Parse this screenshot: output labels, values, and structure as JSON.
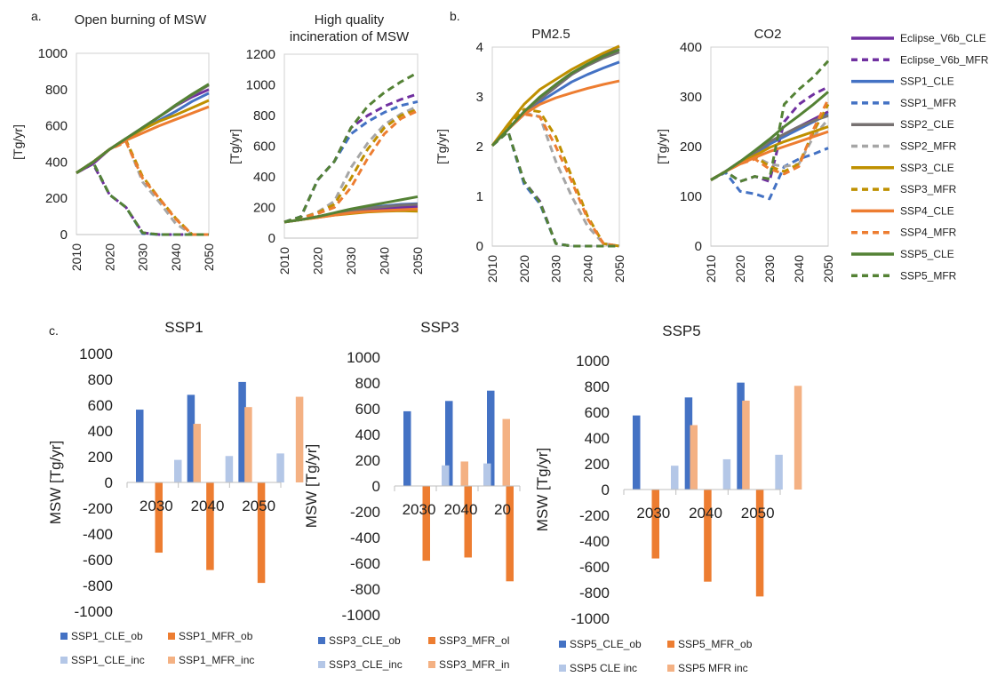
{
  "figure": {
    "panel_labels": [
      "a.",
      "b.",
      "c."
    ]
  },
  "colors": {
    "Eclipse_V6b": "#7030a0",
    "SSP1": "#4472c4",
    "SSP2": "#767171",
    "SSP2_MFR": "#a6a6a6",
    "SSP3": "#bf9000",
    "SSP4": "#ed7d31",
    "SSP5": "#548235",
    "cle_ob": "#4472c4",
    "mfr_ob": "#ed7d31",
    "cle_inc": "#b4c7e7",
    "mfr_inc": "#f4b183"
  },
  "legend": {
    "entries": [
      {
        "label": "Eclipse_V6b_CLE",
        "color": "#7030a0",
        "dash": false
      },
      {
        "label": "Eclipse_V6b_MFR",
        "color": "#7030a0",
        "dash": true
      },
      {
        "label": "SSP1_CLE",
        "color": "#4472c4",
        "dash": false
      },
      {
        "label": "SSP1_MFR",
        "color": "#4472c4",
        "dash": true
      },
      {
        "label": "SSP2_CLE",
        "color": "#767171",
        "dash": false
      },
      {
        "label": "SSP2_MFR",
        "color": "#a6a6a6",
        "dash": true
      },
      {
        "label": "SSP3_CLE",
        "color": "#bf9000",
        "dash": false
      },
      {
        "label": "SSP3_MFR",
        "color": "#bf9000",
        "dash": true
      },
      {
        "label": "SSP4_CLE",
        "color": "#ed7d31",
        "dash": false
      },
      {
        "label": "SSP4_MFR",
        "color": "#ed7d31",
        "dash": true
      },
      {
        "label": "SSP5_CLE",
        "color": "#548235",
        "dash": false
      },
      {
        "label": "SSP5_MFR",
        "color": "#548235",
        "dash": true
      }
    ]
  },
  "chart_data": [
    {
      "type": "line",
      "title": "Open burning of MSW",
      "ylabel": "[Tg/yr]",
      "x": [
        2010,
        2015,
        2020,
        2025,
        2030,
        2035,
        2040,
        2045,
        2050
      ],
      "xticks": [
        "2010",
        "2020",
        "2030",
        "2040",
        "2050"
      ],
      "ylim": [
        0,
        1000
      ],
      "yticks": [
        "0",
        "200",
        "400",
        "600",
        "800",
        "1000"
      ],
      "series": [
        {
          "name": "Eclipse_V6b_CLE",
          "values": [
            340,
            390,
            470,
            520,
            590,
            650,
            710,
            760,
            800
          ]
        },
        {
          "name": "Eclipse_V6b_MFR",
          "values": [
            340,
            390,
            220,
            150,
            10,
            0,
            0,
            0,
            0
          ]
        },
        {
          "name": "SSP1_CLE",
          "values": [
            340,
            400,
            470,
            530,
            580,
            630,
            680,
            735,
            780
          ]
        },
        {
          "name": "SSP1_MFR",
          "values": [
            340,
            400,
            220,
            150,
            5,
            0,
            0,
            0,
            0
          ]
        },
        {
          "name": "SSP2_CLE",
          "values": [
            340,
            400,
            470,
            530,
            590,
            650,
            710,
            770,
            825
          ]
        },
        {
          "name": "SSP2_MFR",
          "values": [
            340,
            400,
            470,
            520,
            290,
            180,
            60,
            0,
            0
          ]
        },
        {
          "name": "SSP3_CLE",
          "values": [
            340,
            400,
            470,
            530,
            580,
            625,
            660,
            700,
            740
          ]
        },
        {
          "name": "SSP3_MFR",
          "values": [
            340,
            400,
            470,
            520,
            320,
            200,
            90,
            0,
            0
          ]
        },
        {
          "name": "SSP4_CLE",
          "values": [
            340,
            400,
            470,
            520,
            560,
            600,
            635,
            670,
            705
          ]
        },
        {
          "name": "SSP4_MFR",
          "values": [
            340,
            400,
            470,
            510,
            310,
            200,
            85,
            0,
            0
          ]
        },
        {
          "name": "SSP5_CLE",
          "values": [
            340,
            400,
            470,
            530,
            590,
            650,
            715,
            775,
            830
          ]
        },
        {
          "name": "SSP5_MFR",
          "values": [
            340,
            400,
            220,
            150,
            10,
            0,
            0,
            0,
            0
          ]
        }
      ]
    },
    {
      "type": "line",
      "title": "High quality incineration of MSW",
      "title_lines": [
        "High quality",
        "incineration of MSW"
      ],
      "ylabel": "[Tg/yr]",
      "x": [
        2010,
        2015,
        2020,
        2025,
        2030,
        2035,
        2040,
        2045,
        2050
      ],
      "xticks": [
        "2010",
        "2020",
        "2030",
        "2040",
        "2050"
      ],
      "ylim": [
        0,
        1200
      ],
      "yticks": [
        "0",
        "200",
        "400",
        "600",
        "800",
        "1000",
        "1200"
      ],
      "series": [
        {
          "name": "Eclipse_V6b_CLE",
          "values": [
            105,
            120,
            140,
            160,
            180,
            190,
            195,
            200,
            205
          ]
        },
        {
          "name": "Eclipse_V6b_MFR",
          "values": [
            105,
            140,
            380,
            500,
            720,
            800,
            860,
            905,
            940
          ]
        },
        {
          "name": "SSP1_CLE",
          "values": [
            105,
            120,
            140,
            160,
            180,
            200,
            210,
            220,
            225
          ]
        },
        {
          "name": "SSP1_MFR",
          "values": [
            105,
            140,
            380,
            500,
            680,
            760,
            820,
            865,
            890
          ]
        },
        {
          "name": "SSP2_CLE",
          "values": [
            105,
            120,
            140,
            160,
            180,
            195,
            205,
            215,
            220
          ]
        },
        {
          "name": "SSP2_MFR",
          "values": [
            105,
            130,
            170,
            240,
            460,
            620,
            740,
            810,
            860
          ]
        },
        {
          "name": "SSP3_CLE",
          "values": [
            105,
            120,
            135,
            150,
            160,
            170,
            175,
            178,
            175
          ]
        },
        {
          "name": "SSP3_MFR",
          "values": [
            105,
            130,
            165,
            220,
            390,
            580,
            720,
            800,
            840
          ]
        },
        {
          "name": "SSP4_CLE",
          "values": [
            105,
            120,
            135,
            150,
            165,
            175,
            180,
            185,
            190
          ]
        },
        {
          "name": "SSP4_MFR",
          "values": [
            105,
            130,
            160,
            200,
            330,
            520,
            680,
            780,
            830
          ]
        },
        {
          "name": "SSP5_CLE",
          "values": [
            105,
            120,
            140,
            165,
            190,
            210,
            230,
            250,
            270
          ]
        },
        {
          "name": "SSP5_MFR",
          "values": [
            105,
            140,
            380,
            500,
            720,
            860,
            950,
            1020,
            1080
          ]
        }
      ]
    },
    {
      "type": "line",
      "title": "PM2.5",
      "ylabel": "[Tg/yr]",
      "x": [
        2010,
        2015,
        2020,
        2025,
        2030,
        2035,
        2040,
        2045,
        2050
      ],
      "xticks": [
        "2010",
        "2020",
        "2030",
        "2040",
        "2050"
      ],
      "ylim": [
        0,
        4
      ],
      "yticks": [
        "0",
        "1",
        "2",
        "3",
        "4"
      ],
      "series": [
        {
          "name": "Eclipse_V6b_CLE",
          "values": [
            2.02,
            2.35,
            2.7,
            2.95,
            3.2,
            3.45,
            3.65,
            3.85,
            4.02
          ]
        },
        {
          "name": "Eclipse_V6b_MFR",
          "values": [
            2.02,
            2.3,
            1.3,
            0.9,
            0.05,
            0,
            0,
            0,
            0
          ]
        },
        {
          "name": "SSP1_CLE",
          "values": [
            2.02,
            2.35,
            2.65,
            2.9,
            3.1,
            3.3,
            3.45,
            3.58,
            3.7
          ]
        },
        {
          "name": "SSP1_MFR",
          "values": [
            2.02,
            2.3,
            1.25,
            0.85,
            0.05,
            0,
            0,
            0,
            0
          ]
        },
        {
          "name": "SSP2_CLE",
          "values": [
            2.02,
            2.35,
            2.68,
            2.95,
            3.2,
            3.45,
            3.63,
            3.78,
            3.9
          ]
        },
        {
          "name": "SSP2_MFR",
          "values": [
            2.02,
            2.35,
            2.68,
            2.6,
            1.7,
            1.0,
            0.4,
            0.05,
            0
          ]
        },
        {
          "name": "SSP3_CLE",
          "values": [
            2.02,
            2.45,
            2.85,
            3.15,
            3.35,
            3.55,
            3.72,
            3.88,
            4.02
          ]
        },
        {
          "name": "SSP3_MFR",
          "values": [
            2.02,
            2.4,
            2.75,
            2.7,
            2.2,
            1.4,
            0.6,
            0.05,
            0
          ]
        },
        {
          "name": "SSP4_CLE",
          "values": [
            2.02,
            2.35,
            2.65,
            2.85,
            2.98,
            3.08,
            3.17,
            3.25,
            3.32
          ]
        },
        {
          "name": "SSP4_MFR",
          "values": [
            2.02,
            2.35,
            2.65,
            2.6,
            2.0,
            1.3,
            0.55,
            0.05,
            0
          ]
        },
        {
          "name": "SSP5_CLE",
          "values": [
            2.02,
            2.35,
            2.7,
            3.0,
            3.25,
            3.48,
            3.66,
            3.82,
            3.95
          ]
        },
        {
          "name": "SSP5_MFR",
          "values": [
            2.02,
            2.3,
            1.3,
            0.88,
            0.05,
            0,
            0,
            0,
            0
          ]
        }
      ]
    },
    {
      "type": "line",
      "title": "CO2",
      "ylabel": "[Tg/yr]",
      "x": [
        2010,
        2015,
        2020,
        2025,
        2030,
        2035,
        2040,
        2045,
        2050
      ],
      "xticks": [
        "2010",
        "2020",
        "2030",
        "2040",
        "2050"
      ],
      "ylim": [
        0,
        400
      ],
      "yticks": [
        "0",
        "100",
        "200",
        "300",
        "400"
      ],
      "series": [
        {
          "name": "Eclipse_V6b_CLE",
          "values": [
            133,
            150,
            168,
            185,
            205,
            225,
            240,
            255,
            270
          ]
        },
        {
          "name": "Eclipse_V6b_MFR",
          "values": [
            133,
            150,
            130,
            140,
            130,
            250,
            285,
            305,
            320
          ]
        },
        {
          "name": "SSP1_CLE",
          "values": [
            133,
            150,
            170,
            185,
            205,
            220,
            235,
            250,
            265
          ]
        },
        {
          "name": "SSP1_MFR",
          "values": [
            133,
            148,
            110,
            105,
            95,
            160,
            175,
            185,
            197
          ]
        },
        {
          "name": "SSP2_CLE",
          "values": [
            133,
            150,
            170,
            188,
            210,
            225,
            240,
            252,
            262
          ]
        },
        {
          "name": "SSP2_MFR",
          "values": [
            133,
            150,
            170,
            180,
            165,
            160,
            165,
            220,
            255
          ]
        },
        {
          "name": "SSP3_CLE",
          "values": [
            133,
            150,
            168,
            182,
            198,
            210,
            220,
            230,
            240
          ]
        },
        {
          "name": "SSP3_MFR",
          "values": [
            133,
            150,
            168,
            180,
            160,
            150,
            165,
            230,
            285
          ]
        },
        {
          "name": "SSP4_CLE",
          "values": [
            133,
            150,
            165,
            178,
            190,
            200,
            210,
            220,
            230
          ]
        },
        {
          "name": "SSP4_MFR",
          "values": [
            133,
            150,
            165,
            175,
            155,
            145,
            160,
            235,
            295
          ]
        },
        {
          "name": "SSP5_CLE",
          "values": [
            133,
            150,
            170,
            192,
            215,
            240,
            262,
            285,
            310
          ]
        },
        {
          "name": "SSP5_MFR",
          "values": [
            133,
            150,
            130,
            140,
            135,
            285,
            315,
            340,
            372
          ]
        }
      ]
    },
    {
      "type": "bar",
      "title": "SSP1",
      "ylabel": "MSW  [Tg/yr]",
      "categories": [
        "2030",
        "2040",
        "2050"
      ],
      "ylim": [
        -1000,
        1000
      ],
      "yticks": [
        "1000",
        "800",
        "600",
        "400",
        "200",
        "0",
        "-200",
        "-400",
        "-600",
        "-800",
        "-1000"
      ],
      "series": [
        {
          "name": "SSP1_CLE_ob",
          "values": [
            565,
            680,
            780
          ]
        },
        {
          "name": "SSP1_MFR_ob",
          "values": [
            -545,
            -680,
            -780
          ]
        },
        {
          "name": "SSP1_CLE_inc",
          "values": [
            175,
            205,
            225
          ]
        },
        {
          "name": "SSP1_MFR_inc",
          "values": [
            455,
            585,
            665
          ]
        }
      ]
    },
    {
      "type": "bar",
      "title": "SSP3",
      "ylabel": "MSW  [Tg/yr]",
      "categories": [
        "2030",
        "2040",
        "20"
      ],
      "ylim": [
        -1000,
        1000
      ],
      "yticks": [
        "1000",
        "800",
        "600",
        "400",
        "200",
        "0",
        "-200",
        "-400",
        "-600",
        "-800",
        "-1000"
      ],
      "series": [
        {
          "name": "SSP3_CLE_ob",
          "values": [
            580,
            660,
            740
          ]
        },
        {
          "name": "SSP3_MFR_ob",
          "values": [
            -580,
            -555,
            -740
          ]
        },
        {
          "name": "SSP3_CLE_inc",
          "values": [
            160,
            175,
            null
          ]
        },
        {
          "name": "SSP3_MFR_inc",
          "values": [
            190,
            520,
            null
          ]
        }
      ]
    },
    {
      "type": "bar",
      "title": "SSP5",
      "ylabel": "MSW  [Tg/yr]",
      "categories": [
        "2030",
        "2040",
        "2050"
      ],
      "ylim": [
        -1000,
        1000
      ],
      "yticks": [
        "1000",
        "800",
        "600",
        "400",
        "200",
        "0",
        "-200",
        "-400",
        "-600",
        "-800",
        "-1000"
      ],
      "series": [
        {
          "name": "SSP5_CLE_ob",
          "values": [
            575,
            715,
            830
          ]
        },
        {
          "name": "SSP5_MFR_ob",
          "values": [
            -535,
            -715,
            -830
          ]
        },
        {
          "name": "SSP5_CLE_inc",
          "values": [
            185,
            235,
            270
          ]
        },
        {
          "name": "SSP5_MFR_inc",
          "values": [
            500,
            690,
            805
          ]
        }
      ]
    }
  ],
  "bar_legends": [
    {
      "labels": [
        "SSP1_CLE_ob",
        "SSP1_MFR_ob",
        "SSP1_CLE_inc",
        "SSP1_MFR_inc"
      ]
    },
    {
      "labels": [
        "SSP3_CLE_ob",
        "SSP3_MFR_ol",
        "SSP3_CLE_inc",
        "SSP3_MFR_in"
      ]
    },
    {
      "labels": [
        "SSP5_CLE_ob",
        "SSP5_MFR_ob",
        "SSP5  CLE  inc",
        "SSP5  MFR  inc"
      ]
    }
  ]
}
